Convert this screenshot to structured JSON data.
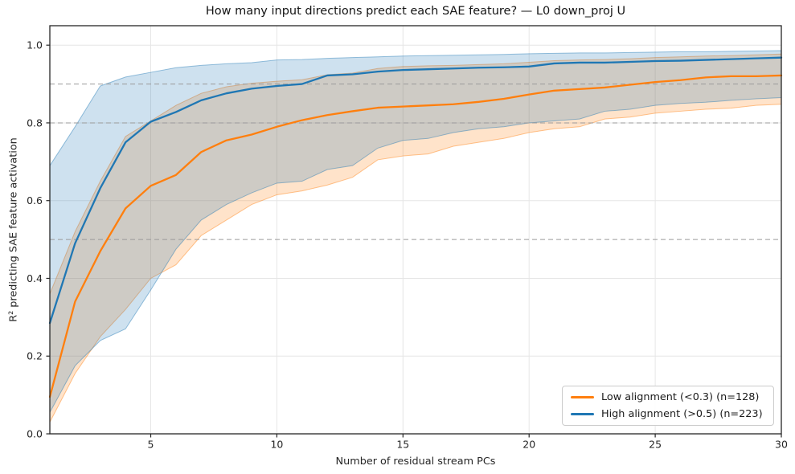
{
  "title": "How many input directions predict each SAE feature? — L0 down_proj U",
  "axes": {
    "xlabel": "Number of residual stream PCs",
    "ylabel": "R² predicting SAE feature activation",
    "x_tick_labels": [
      "5",
      "10",
      "15",
      "20",
      "25",
      "30"
    ],
    "x_tick_values": [
      5,
      10,
      15,
      20,
      25,
      30
    ],
    "y_tick_labels": [
      "0.0",
      "0.2",
      "0.4",
      "0.6",
      "0.8",
      "1.0"
    ],
    "y_tick_values": [
      0.0,
      0.2,
      0.4,
      0.6,
      0.8,
      1.0
    ]
  },
  "legend": {
    "position": "lower right",
    "items": [
      {
        "label": "Low alignment (<0.3) (n=128)",
        "color": "#ff7f0e"
      },
      {
        "label": "High alignment (>0.5) (n=223)",
        "color": "#1f77b4"
      }
    ]
  },
  "colors": {
    "orange_line": "#ff7f0e",
    "blue_line": "#1f77b4",
    "grid": "#e6e6e6",
    "reference_dashed": "#9a9a9a",
    "spine": "#262626",
    "tick_text": "#262626",
    "background": "#ffffff"
  },
  "chart_data": {
    "type": "line",
    "title": "How many input directions predict each SAE feature? — L0 down_proj U",
    "xlabel": "Number of residual stream PCs",
    "ylabel": "R² predicting SAE feature activation",
    "xlim": [
      1,
      30
    ],
    "ylim": [
      0,
      1.05
    ],
    "grid": true,
    "legend_position": "lower right",
    "reference_lines_y": [
      0.5,
      0.8,
      0.9
    ],
    "x": [
      1,
      2,
      3,
      4,
      5,
      6,
      7,
      8,
      9,
      10,
      11,
      12,
      13,
      14,
      15,
      16,
      17,
      18,
      19,
      20,
      21,
      22,
      23,
      24,
      25,
      26,
      27,
      28,
      29,
      30
    ],
    "series": [
      {
        "name": "Low alignment (<0.3) (n=128)",
        "color": "#ff7f0e",
        "values": [
          0.095,
          0.34,
          0.47,
          0.58,
          0.638,
          0.666,
          0.725,
          0.755,
          0.77,
          0.79,
          0.807,
          0.82,
          0.83,
          0.839,
          0.842,
          0.845,
          0.848,
          0.854,
          0.862,
          0.873,
          0.883,
          0.887,
          0.891,
          0.898,
          0.905,
          0.91,
          0.917,
          0.92,
          0.92,
          0.922
        ],
        "band_upper": [
          0.36,
          0.52,
          0.65,
          0.765,
          0.805,
          0.845,
          0.876,
          0.893,
          0.902,
          0.907,
          0.911,
          0.924,
          0.928,
          0.94,
          0.945,
          0.947,
          0.948,
          0.95,
          0.952,
          0.956,
          0.96,
          0.962,
          0.963,
          0.965,
          0.968,
          0.97,
          0.972,
          0.973,
          0.975,
          0.977
        ],
        "band_lower": [
          0.03,
          0.155,
          0.25,
          0.32,
          0.4,
          0.435,
          0.51,
          0.55,
          0.59,
          0.615,
          0.625,
          0.64,
          0.66,
          0.705,
          0.715,
          0.72,
          0.74,
          0.75,
          0.76,
          0.775,
          0.785,
          0.79,
          0.81,
          0.815,
          0.825,
          0.83,
          0.835,
          0.838,
          0.845,
          0.848
        ]
      },
      {
        "name": "High alignment (>0.5) (n=223)",
        "color": "#1f77b4",
        "values": [
          0.285,
          0.49,
          0.632,
          0.75,
          0.803,
          0.828,
          0.858,
          0.876,
          0.888,
          0.895,
          0.9,
          0.922,
          0.925,
          0.932,
          0.936,
          0.938,
          0.94,
          0.942,
          0.943,
          0.945,
          0.953,
          0.955,
          0.955,
          0.957,
          0.959,
          0.96,
          0.962,
          0.964,
          0.966,
          0.968
        ],
        "band_upper": [
          0.69,
          0.79,
          0.895,
          0.918,
          0.93,
          0.942,
          0.948,
          0.952,
          0.955,
          0.962,
          0.963,
          0.966,
          0.968,
          0.97,
          0.972,
          0.973,
          0.974,
          0.975,
          0.976,
          0.978,
          0.979,
          0.98,
          0.98,
          0.981,
          0.982,
          0.983,
          0.983,
          0.984,
          0.985,
          0.986
        ],
        "band_lower": [
          0.055,
          0.175,
          0.24,
          0.27,
          0.37,
          0.475,
          0.55,
          0.59,
          0.62,
          0.645,
          0.65,
          0.68,
          0.69,
          0.735,
          0.755,
          0.76,
          0.775,
          0.785,
          0.79,
          0.8,
          0.805,
          0.81,
          0.83,
          0.835,
          0.845,
          0.85,
          0.853,
          0.858,
          0.862,
          0.865
        ]
      }
    ]
  }
}
